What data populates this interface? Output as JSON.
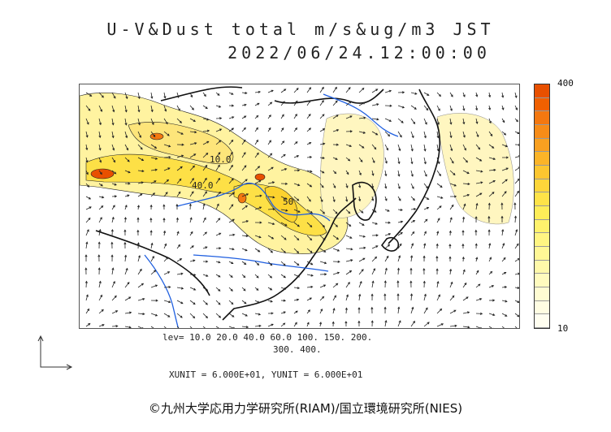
{
  "title": "U-V&Dust total m/s&ug/m3 JST",
  "timestamp": "2022/06/24.12:00:00",
  "colorbar": {
    "max_label": "400",
    "min_label": "10",
    "colors": [
      "#e85000",
      "#f06000",
      "#f47810",
      "#f78c18",
      "#f9a020",
      "#fbb428",
      "#fcc630",
      "#fdd63a",
      "#fee348",
      "#feed58",
      "#fff26c",
      "#fff582",
      "#fff796",
      "#fff9aa",
      "#fffbbe",
      "#fffcd2",
      "#fffde2",
      "#fffef0"
    ]
  },
  "levels_line1": "lev= 10.0 20.0 40.0 60.0 100. 150. 200.",
  "levels_line2": "300. 400.",
  "units": "XUNIT = 6.000E+01, YUNIT = 6.000E+01",
  "credit": "©九州大学応用力学研究所(RIAM)/国立環境研究所(NIES)",
  "contour_labels": [
    "10.0",
    "40.0",
    "50"
  ],
  "colors": {
    "coast": "#111111",
    "river": "#1f5fe0",
    "contour": "#222222"
  }
}
